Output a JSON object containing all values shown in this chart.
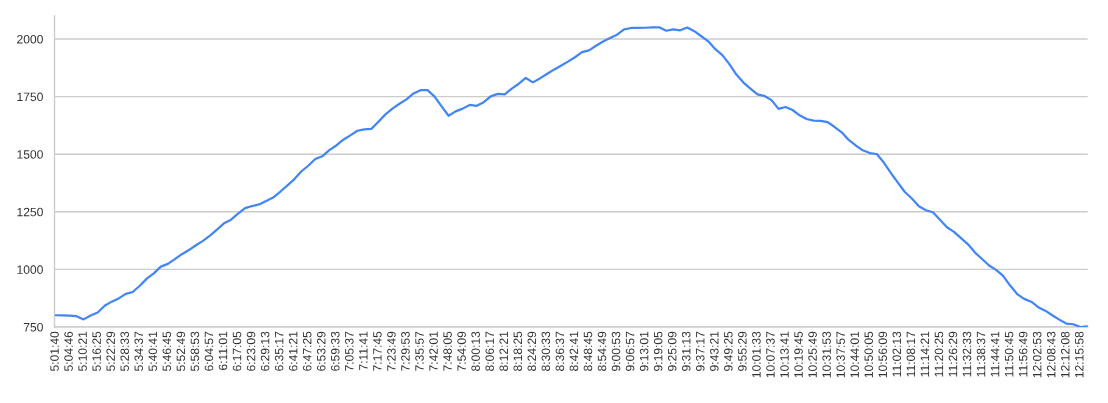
{
  "chart_data": {
    "type": "line",
    "categories": [
      "5:01:40",
      null,
      "5:04:46",
      null,
      "5:10:21",
      null,
      "5:16:25",
      null,
      "5:22:29",
      null,
      "5:28:33",
      null,
      "5:34:37",
      null,
      "5:40:41",
      null,
      "5:46:45",
      null,
      "5:52:49",
      null,
      "5:58:53",
      null,
      "6:04:57",
      null,
      "6:11:01",
      null,
      "6:17:05",
      null,
      "6:23:09",
      null,
      "6:29:13",
      null,
      "6:35:17",
      null,
      "6:41:21",
      null,
      "6:47:25",
      null,
      "6:53:29",
      null,
      "6:59:33",
      null,
      "7:05:37",
      null,
      "7:11:41",
      null,
      "7:17:45",
      null,
      "7:23:49",
      null,
      "7:29:53",
      null,
      "7:35:57",
      null,
      "7:42:01",
      null,
      "7:48:05",
      null,
      "7:54:09",
      null,
      "8:00:13",
      null,
      "8:06:17",
      null,
      "8:12:21",
      null,
      "8:18:25",
      null,
      "8:24:29",
      null,
      "8:30:33",
      null,
      "8:36:37",
      null,
      "8:42:41",
      null,
      "8:48:45",
      null,
      "8:54:49",
      null,
      "9:00:53",
      null,
      "9:06:57",
      null,
      "9:13:01",
      null,
      "9:19:05",
      null,
      "9:25:09",
      null,
      "9:31:13",
      null,
      "9:37:17",
      null,
      "9:43:21",
      null,
      "9:49:25",
      null,
      "9:55:29",
      null,
      "10:01:33",
      null,
      "10:07:37",
      null,
      "10:13:41",
      null,
      "10:19:45",
      null,
      "10:25:49",
      null,
      "10:31:53",
      null,
      "10:37:57",
      null,
      "10:44:01",
      null,
      "10:50:05",
      null,
      "10:56:09",
      null,
      "11:02:13",
      null,
      "11:08:17",
      null,
      "11:14:21",
      null,
      "11:20:25",
      null,
      "11:26:29",
      null,
      "11:32:33",
      null,
      "11:38:37",
      null,
      "11:44:41",
      null,
      "11:50:45",
      null,
      "11:56:49",
      null,
      "12:02:53",
      null,
      "12:08:43",
      null,
      "12:12:08",
      null,
      "12:15:58",
      null
    ],
    "values": [
      801,
      800,
      799,
      797,
      783,
      800,
      813,
      842,
      860,
      874,
      894,
      902,
      929,
      960,
      983,
      1012,
      1024,
      1045,
      1066,
      1084,
      1105,
      1124,
      1147,
      1173,
      1200,
      1216,
      1242,
      1266,
      1275,
      1282,
      1297,
      1312,
      1337,
      1364,
      1391,
      1425,
      1450,
      1479,
      1491,
      1518,
      1538,
      1563,
      1582,
      1602,
      1608,
      1610,
      1641,
      1673,
      1698,
      1719,
      1738,
      1764,
      1778,
      1778,
      1750,
      1708,
      1667,
      1686,
      1698,
      1714,
      1710,
      1726,
      1751,
      1762,
      1760,
      1785,
      1806,
      1831,
      1812,
      1829,
      1848,
      1867,
      1884,
      1902,
      1921,
      1943,
      1951,
      1971,
      1989,
      2004,
      2019,
      2042,
      2048,
      2048,
      2049,
      2051,
      2051,
      2036,
      2042,
      2038,
      2050,
      2034,
      2012,
      1990,
      1956,
      1930,
      1891,
      1846,
      1811,
      1785,
      1760,
      1753,
      1735,
      1697,
      1705,
      1692,
      1669,
      1653,
      1646,
      1645,
      1639,
      1618,
      1595,
      1562,
      1538,
      1517,
      1505,
      1501,
      1464,
      1419,
      1377,
      1336,
      1308,
      1274,
      1257,
      1248,
      1216,
      1183,
      1163,
      1136,
      1109,
      1073,
      1045,
      1017,
      998,
      972,
      930,
      893,
      872,
      860,
      836,
      821,
      801,
      782,
      765,
      762,
      750,
      753
    ],
    "color": "#4285f4",
    "ylim": [
      750,
      2100
    ],
    "yticks": [
      750,
      1000,
      1250,
      1500,
      1750,
      2000
    ],
    "grid": "y"
  }
}
